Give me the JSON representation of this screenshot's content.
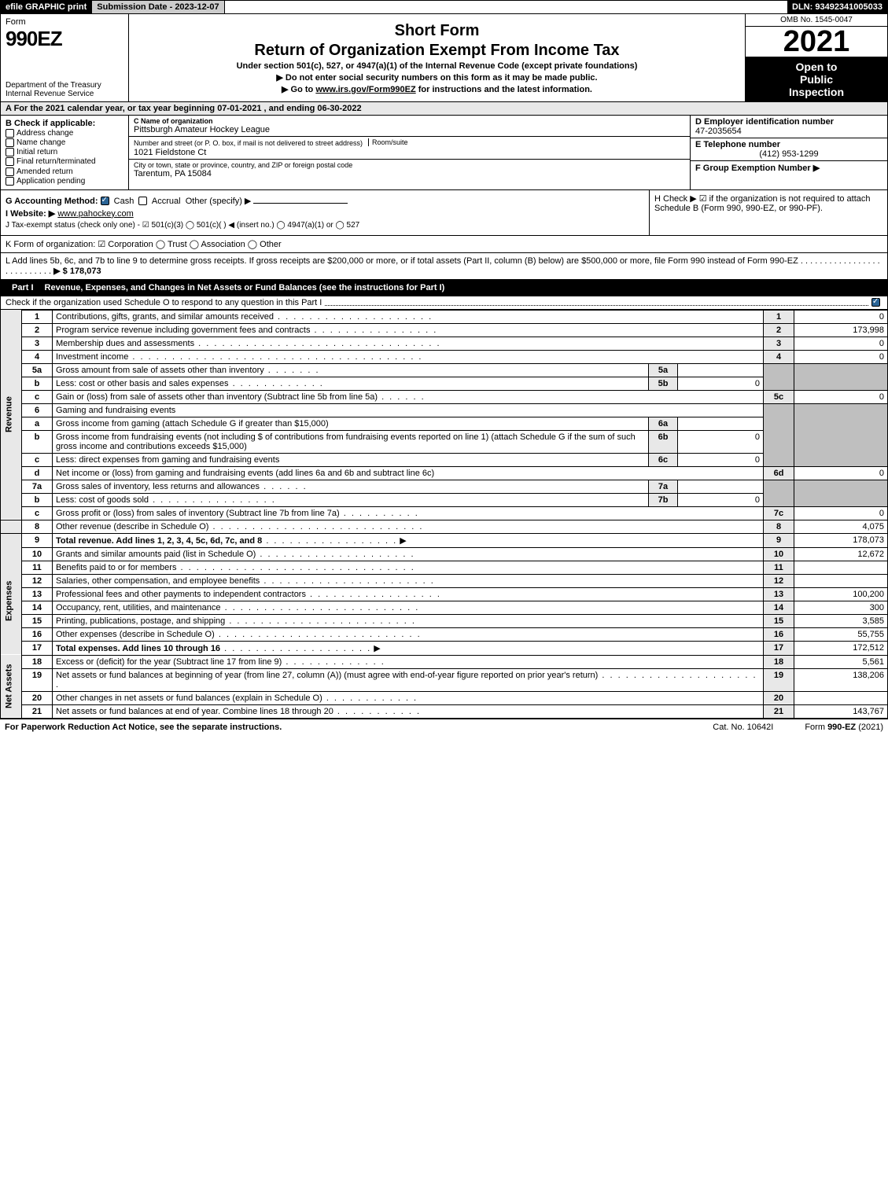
{
  "top_bar": {
    "efile": "efile GRAPHIC print",
    "submission": "Submission Date - 2023-12-07",
    "dln": "DLN: 93492341005033"
  },
  "header": {
    "form_label": "Form",
    "form_number": "990EZ",
    "dept": "Department of the Treasury\nInternal Revenue Service",
    "title1": "Short Form",
    "title2": "Return of Organization Exempt From Income Tax",
    "subtitle": "Under section 501(c), 527, or 4947(a)(1) of the Internal Revenue Code (except private foundations)",
    "instr1": "▶ Do not enter social security numbers on this form as it may be made public.",
    "instr2_pre": "▶ Go to ",
    "instr2_link": "www.irs.gov/Form990EZ",
    "instr2_post": " for instructions and the latest information.",
    "omb": "OMB No. 1545-0047",
    "year": "2021",
    "open1": "Open to",
    "open2": "Public",
    "open3": "Inspection"
  },
  "section_a": "A  For the 2021 calendar year, or tax year beginning 07-01-2021 , and ending 06-30-2022",
  "section_b": {
    "label": "B  Check if applicable:",
    "opts": [
      "Address change",
      "Name change",
      "Initial return",
      "Final return/terminated",
      "Amended return",
      "Application pending"
    ]
  },
  "section_c": {
    "name_label": "C Name of organization",
    "name": "Pittsburgh Amateur Hockey League",
    "street_label": "Number and street (or P. O. box, if mail is not delivered to street address)",
    "room_label": "Room/suite",
    "street": "1021 Fieldstone Ct",
    "city_label": "City or town, state or province, country, and ZIP or foreign postal code",
    "city": "Tarentum, PA  15084"
  },
  "section_def": {
    "d_label": "D Employer identification number",
    "ein": "47-2035654",
    "e_label": "E Telephone number",
    "phone": "(412) 953-1299",
    "f_label": "F Group Exemption Number  ▶"
  },
  "section_g": {
    "label": "G Accounting Method:",
    "cash": "Cash",
    "accrual": "Accrual",
    "other": "Other (specify) ▶"
  },
  "section_h": "H  Check ▶ ☑ if the organization is not required to attach Schedule B (Form 990, 990-EZ, or 990-PF).",
  "section_i": {
    "label": "I Website: ▶",
    "value": "www.pahockey.com"
  },
  "section_j": "J Tax-exempt status (check only one) - ☑ 501(c)(3) ◯ 501(c)(  ) ◀ (insert no.) ◯ 4947(a)(1) or ◯ 527",
  "section_k": "K Form of organization: ☑ Corporation  ◯ Trust  ◯ Association  ◯ Other",
  "section_l": {
    "text": "L Add lines 5b, 6c, and 7b to line 9 to determine gross receipts. If gross receipts are $200,000 or more, or if total assets (Part II, column (B) below) are $500,000 or more, file Form 990 instead of Form 990-EZ",
    "amount": "▶ $ 178,073"
  },
  "part1": {
    "badge": "Part I",
    "title": "Revenue, Expenses, and Changes in Net Assets or Fund Balances (see the instructions for Part I)",
    "sub": "Check if the organization used Schedule O to respond to any question in this Part I"
  },
  "side_labels": {
    "rev": "Revenue",
    "exp": "Expenses",
    "na": "Net Assets"
  },
  "lines": {
    "l1": {
      "no": "1",
      "desc": "Contributions, gifts, grants, and similar amounts received",
      "col": "1",
      "val": "0"
    },
    "l2": {
      "no": "2",
      "desc": "Program service revenue including government fees and contracts",
      "col": "2",
      "val": "173,998"
    },
    "l3": {
      "no": "3",
      "desc": "Membership dues and assessments",
      "col": "3",
      "val": "0"
    },
    "l4": {
      "no": "4",
      "desc": "Investment income",
      "col": "4",
      "val": "0"
    },
    "l5a": {
      "no": "5a",
      "desc": "Gross amount from sale of assets other than inventory",
      "in": "5a",
      "iv": ""
    },
    "l5b": {
      "no": "b",
      "desc": "Less: cost or other basis and sales expenses",
      "in": "5b",
      "iv": "0"
    },
    "l5c": {
      "no": "c",
      "desc": "Gain or (loss) from sale of assets other than inventory (Subtract line 5b from line 5a)",
      "col": "5c",
      "val": "0"
    },
    "l6": {
      "no": "6",
      "desc": "Gaming and fundraising events"
    },
    "l6a": {
      "no": "a",
      "desc": "Gross income from gaming (attach Schedule G if greater than $15,000)",
      "in": "6a",
      "iv": ""
    },
    "l6b": {
      "no": "b",
      "desc": "Gross income from fundraising events (not including $                 of contributions from fundraising events reported on line 1) (attach Schedule G if the sum of such gross income and contributions exceeds $15,000)",
      "in": "6b",
      "iv": "0"
    },
    "l6c": {
      "no": "c",
      "desc": "Less: direct expenses from gaming and fundraising events",
      "in": "6c",
      "iv": "0"
    },
    "l6d": {
      "no": "d",
      "desc": "Net income or (loss) from gaming and fundraising events (add lines 6a and 6b and subtract line 6c)",
      "col": "6d",
      "val": "0"
    },
    "l7a": {
      "no": "7a",
      "desc": "Gross sales of inventory, less returns and allowances",
      "in": "7a",
      "iv": ""
    },
    "l7b": {
      "no": "b",
      "desc": "Less: cost of goods sold",
      "in": "7b",
      "iv": "0"
    },
    "l7c": {
      "no": "c",
      "desc": "Gross profit or (loss) from sales of inventory (Subtract line 7b from line 7a)",
      "col": "7c",
      "val": "0"
    },
    "l8": {
      "no": "8",
      "desc": "Other revenue (describe in Schedule O)",
      "col": "8",
      "val": "4,075"
    },
    "l9": {
      "no": "9",
      "desc": "Total revenue. Add lines 1, 2, 3, 4, 5c, 6d, 7c, and 8",
      "col": "9",
      "val": "178,073"
    },
    "l10": {
      "no": "10",
      "desc": "Grants and similar amounts paid (list in Schedule O)",
      "col": "10",
      "val": "12,672"
    },
    "l11": {
      "no": "11",
      "desc": "Benefits paid to or for members",
      "col": "11",
      "val": ""
    },
    "l12": {
      "no": "12",
      "desc": "Salaries, other compensation, and employee benefits",
      "col": "12",
      "val": ""
    },
    "l13": {
      "no": "13",
      "desc": "Professional fees and other payments to independent contractors",
      "col": "13",
      "val": "100,200"
    },
    "l14": {
      "no": "14",
      "desc": "Occupancy, rent, utilities, and maintenance",
      "col": "14",
      "val": "300"
    },
    "l15": {
      "no": "15",
      "desc": "Printing, publications, postage, and shipping",
      "col": "15",
      "val": "3,585"
    },
    "l16": {
      "no": "16",
      "desc": "Other expenses (describe in Schedule O)",
      "col": "16",
      "val": "55,755"
    },
    "l17": {
      "no": "17",
      "desc": "Total expenses. Add lines 10 through 16",
      "col": "17",
      "val": "172,512"
    },
    "l18": {
      "no": "18",
      "desc": "Excess or (deficit) for the year (Subtract line 17 from line 9)",
      "col": "18",
      "val": "5,561"
    },
    "l19": {
      "no": "19",
      "desc": "Net assets or fund balances at beginning of year (from line 27, column (A)) (must agree with end-of-year figure reported on prior year's return)",
      "col": "19",
      "val": "138,206"
    },
    "l20": {
      "no": "20",
      "desc": "Other changes in net assets or fund balances (explain in Schedule O)",
      "col": "20",
      "val": ""
    },
    "l21": {
      "no": "21",
      "desc": "Net assets or fund balances at end of year. Combine lines 18 through 20",
      "col": "21",
      "val": "143,767"
    }
  },
  "footer": {
    "left": "For Paperwork Reduction Act Notice, see the separate instructions.",
    "mid": "Cat. No. 10642I",
    "right_pre": "Form ",
    "right_bold": "990-EZ",
    "right_post": " (2021)"
  },
  "colors": {
    "header_bg": "#000000",
    "shade": "#bfbfbf",
    "light_shade": "#e8e8e8",
    "check": "#2a6496"
  }
}
